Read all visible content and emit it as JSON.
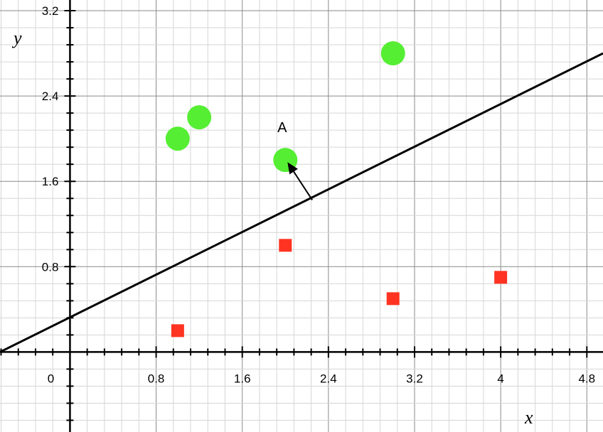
{
  "chart_data": {
    "type": "scatter",
    "xlabel": "x",
    "ylabel": "y",
    "xlim": [
      -0.65,
      4.95
    ],
    "ylim": [
      -0.75,
      3.3
    ],
    "x_ticks": [
      0.8,
      1.6,
      2.4,
      3.2,
      4,
      4.8
    ],
    "x_tick_labels": [
      "0.8",
      "1.6",
      "2.4",
      "3.2",
      "4",
      "4.8"
    ],
    "y_ticks": [
      0.8,
      1.6,
      2.4,
      3.2
    ],
    "y_tick_labels": [
      "0.8",
      "1.6",
      "2.4",
      "3.2"
    ],
    "origin_label": "0",
    "grid": true,
    "series": [
      {
        "marker": "circle",
        "color": "#55ee33",
        "points": [
          [
            1.0,
            2.0
          ],
          [
            1.2,
            2.2
          ],
          [
            2.0,
            1.8
          ],
          [
            3.0,
            2.8
          ]
        ]
      },
      {
        "marker": "square",
        "color": "#ff3322",
        "points": [
          [
            1.0,
            0.2
          ],
          [
            2.0,
            1.0
          ],
          [
            3.0,
            0.5
          ],
          [
            4.0,
            0.7
          ]
        ]
      }
    ],
    "line": {
      "from": [
        -0.65,
        0.0
      ],
      "to": [
        4.95,
        2.8
      ],
      "color": "#000000"
    },
    "arrow": {
      "from": [
        2.25,
        1.425
      ],
      "to": [
        2.02,
        1.78
      ],
      "color": "#000000"
    },
    "annotations": [
      {
        "text": "A",
        "x": 1.97,
        "y": 2.06
      }
    ]
  }
}
